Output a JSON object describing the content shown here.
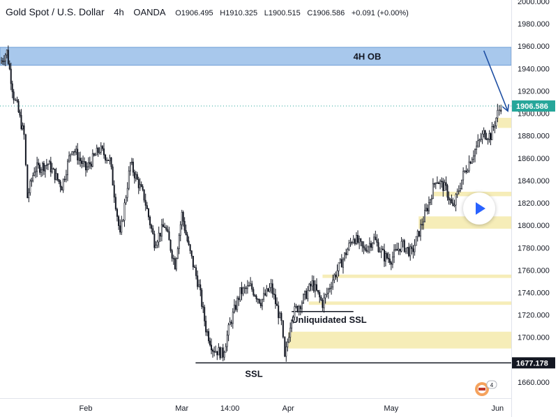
{
  "header": {
    "symbol": "Gold Spot / U.S. Dollar",
    "timeframe": "4h",
    "exchange": "OANDA",
    "o_label": "O",
    "o_value": "1906.495",
    "h_label": "H",
    "h_value": "1910.325",
    "l_label": "L",
    "l_value": "1900.515",
    "c_label": "C",
    "c_value": "1906.586",
    "change": "+0.091 (+0.00%)"
  },
  "chart_data": {
    "type": "candlestick",
    "title": "",
    "ylim": [
      1650,
      2000
    ],
    "y_ticks": [
      1660,
      1680,
      1700,
      1720,
      1740,
      1760,
      1780,
      1800,
      1820,
      1840,
      1860,
      1880,
      1900,
      1920,
      1940,
      1960,
      1980,
      2000
    ],
    "y_tick_labels": [
      "1660.000",
      "1680.000",
      "1700.000",
      "1720.000",
      "1740.000",
      "1760.000",
      "1780.000",
      "1800.000",
      "1820.000",
      "1840.000",
      "1860.000",
      "1880.000",
      "1900.000",
      "1920.000",
      "1940.000",
      "1960.000",
      "1980.000",
      "2000.000"
    ],
    "x_tick_labels": [
      {
        "label": "Feb",
        "at": "2023-02-01"
      },
      {
        "label": "Mar",
        "at": "2023-03-01"
      },
      {
        "label": "14:00",
        "at": "2023-03-15"
      },
      {
        "label": "Apr",
        "at": "2023-04-01"
      },
      {
        "label": "May",
        "at": "2023-05-01"
      },
      {
        "label": "Jun",
        "at": "2023-06-01"
      }
    ],
    "x_range": [
      "2023-01-07",
      "2023-06-05"
    ],
    "price_path": [
      {
        "date": "2023-01-07",
        "price": 1945
      },
      {
        "date": "2023-01-09",
        "price": 1955
      },
      {
        "date": "2023-01-11",
        "price": 1915
      },
      {
        "date": "2023-01-12",
        "price": 1906
      },
      {
        "date": "2023-01-14",
        "price": 1880
      },
      {
        "date": "2023-01-15",
        "price": 1825
      },
      {
        "date": "2023-01-17",
        "price": 1850
      },
      {
        "date": "2023-01-21",
        "price": 1855
      },
      {
        "date": "2023-01-25",
        "price": 1835
      },
      {
        "date": "2023-01-28",
        "price": 1870
      },
      {
        "date": "2023-02-01",
        "price": 1850
      },
      {
        "date": "2023-02-05",
        "price": 1868
      },
      {
        "date": "2023-02-08",
        "price": 1858
      },
      {
        "date": "2023-02-11",
        "price": 1790
      },
      {
        "date": "2023-02-14",
        "price": 1855
      },
      {
        "date": "2023-02-18",
        "price": 1825
      },
      {
        "date": "2023-02-21",
        "price": 1785
      },
      {
        "date": "2023-02-24",
        "price": 1800
      },
      {
        "date": "2023-02-27",
        "price": 1765
      },
      {
        "date": "2023-03-01",
        "price": 1810
      },
      {
        "date": "2023-03-03",
        "price": 1780
      },
      {
        "date": "2023-03-06",
        "price": 1745
      },
      {
        "date": "2023-03-08",
        "price": 1708
      },
      {
        "date": "2023-03-10",
        "price": 1690
      },
      {
        "date": "2023-03-13",
        "price": 1685
      },
      {
        "date": "2023-03-15",
        "price": 1712
      },
      {
        "date": "2023-03-18",
        "price": 1740
      },
      {
        "date": "2023-03-21",
        "price": 1745
      },
      {
        "date": "2023-03-24",
        "price": 1732
      },
      {
        "date": "2023-03-27",
        "price": 1745
      },
      {
        "date": "2023-03-30",
        "price": 1712
      },
      {
        "date": "2023-03-31",
        "price": 1680
      },
      {
        "date": "2023-04-02",
        "price": 1720
      },
      {
        "date": "2023-04-05",
        "price": 1732
      },
      {
        "date": "2023-04-08",
        "price": 1748
      },
      {
        "date": "2023-04-11",
        "price": 1730
      },
      {
        "date": "2023-04-14",
        "price": 1752
      },
      {
        "date": "2023-04-17",
        "price": 1770
      },
      {
        "date": "2023-04-20",
        "price": 1790
      },
      {
        "date": "2023-04-23",
        "price": 1778
      },
      {
        "date": "2023-04-26",
        "price": 1788
      },
      {
        "date": "2023-04-29",
        "price": 1772
      },
      {
        "date": "2023-05-01",
        "price": 1770
      },
      {
        "date": "2023-05-04",
        "price": 1783
      },
      {
        "date": "2023-05-07",
        "price": 1775
      },
      {
        "date": "2023-05-10",
        "price": 1802
      },
      {
        "date": "2023-05-12",
        "price": 1820
      },
      {
        "date": "2023-05-14",
        "price": 1842
      },
      {
        "date": "2023-05-17",
        "price": 1832
      },
      {
        "date": "2023-05-19",
        "price": 1815
      },
      {
        "date": "2023-05-22",
        "price": 1845
      },
      {
        "date": "2023-05-25",
        "price": 1865
      },
      {
        "date": "2023-05-28",
        "price": 1882
      },
      {
        "date": "2023-05-30",
        "price": 1880
      },
      {
        "date": "2023-06-01",
        "price": 1900
      },
      {
        "date": "2023-06-02",
        "price": 1906.586
      }
    ],
    "zones": [
      {
        "name": "4H OB",
        "kind": "order-block",
        "from": "2023-01-07",
        "to": "2023-06-05",
        "low": 1943,
        "high": 1959,
        "color": "#a8c8ec",
        "label": "4H OB"
      },
      {
        "kind": "fvg",
        "from": "2023-06-01",
        "to": "2023-06-05",
        "low": 1887,
        "high": 1896,
        "color": "#f6edb8"
      },
      {
        "kind": "fvg",
        "from": "2023-05-13",
        "to": "2023-06-05",
        "low": 1826,
        "high": 1830,
        "color": "#f6edb8"
      },
      {
        "kind": "fvg",
        "from": "2023-05-09",
        "to": "2023-06-05",
        "low": 1797,
        "high": 1808,
        "color": "#f6edb8"
      },
      {
        "kind": "fvg",
        "from": "2023-04-11",
        "to": "2023-06-05",
        "low": 1753,
        "high": 1756,
        "color": "#f6edb8"
      },
      {
        "kind": "fvg",
        "from": "2023-04-07",
        "to": "2023-06-05",
        "low": 1729,
        "high": 1732,
        "color": "#f6edb8"
      },
      {
        "kind": "fvg",
        "from": "2023-04-01",
        "to": "2023-06-05",
        "low": 1690,
        "high": 1705,
        "color": "#f6edb8"
      }
    ],
    "levels": [
      {
        "name": "SSL",
        "price": 1677.178,
        "from": "2023-03-05",
        "to": "2023-06-05",
        "label": "SSL",
        "label_at": "2023-03-22",
        "price_label": "1677.178"
      },
      {
        "name": "Unliquidated SSL",
        "price": 1723,
        "from": "2023-04-02",
        "to": "2023-04-20",
        "label": "Unliquidated SSL"
      }
    ],
    "current_price": {
      "value": 1906.586,
      "label": "1906.586",
      "color": "#26a69a"
    },
    "arrow": {
      "from": {
        "date": "2023-05-28",
        "price": 1956
      },
      "to": {
        "date": "2023-06-04",
        "price": 1902
      },
      "color": "#1e4fa3"
    },
    "grid": false
  }
}
